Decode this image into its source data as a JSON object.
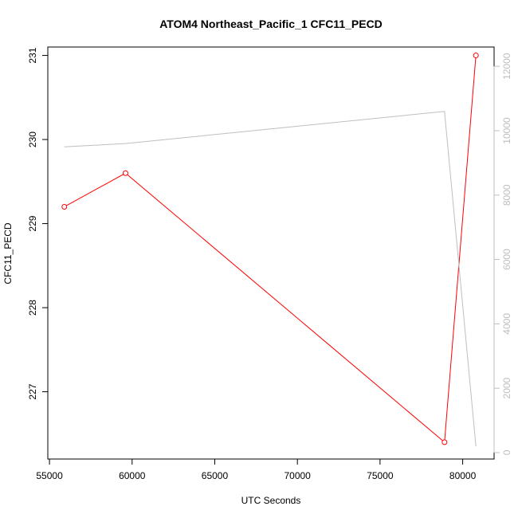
{
  "chart_data": {
    "type": "line",
    "title": "ATOM4 Northeast_Pacific_1 CFC11_PECD",
    "xlabel": "UTC Seconds",
    "ylabel": "CFC11_PECD",
    "y2label": "",
    "xlim": [
      54900,
      81900
    ],
    "ylim": [
      226.2,
      231.1
    ],
    "y2lim": [
      -200,
      12600
    ],
    "x_ticks": [
      55000,
      60000,
      65000,
      70000,
      75000,
      80000
    ],
    "y_ticks": [
      227,
      228,
      229,
      230,
      231
    ],
    "y2_ticks": [
      0,
      2000,
      4000,
      6000,
      8000,
      10000,
      12000
    ],
    "x_tick_labels": [
      "55000",
      "60000",
      "65000",
      "70000",
      "75000",
      "80000"
    ],
    "y_tick_labels": [
      "227",
      "228",
      "229",
      "230",
      "231"
    ],
    "y2_tick_labels": [
      "0",
      "2000",
      "4000",
      "6000",
      "8000",
      "10000",
      "12000"
    ],
    "grid": false,
    "series": [
      {
        "axis": "left",
        "color": "#ff0000",
        "marker": "open-circle",
        "x": [
          55900,
          59600,
          78900,
          80800
        ],
        "values": [
          229.2,
          229.6,
          226.4,
          231.0
        ]
      },
      {
        "axis": "right",
        "color": "#bebebe",
        "marker": "none",
        "x": [
          55900,
          59600,
          78900,
          80800
        ],
        "values": [
          9500,
          9600,
          10600,
          200
        ]
      }
    ]
  }
}
